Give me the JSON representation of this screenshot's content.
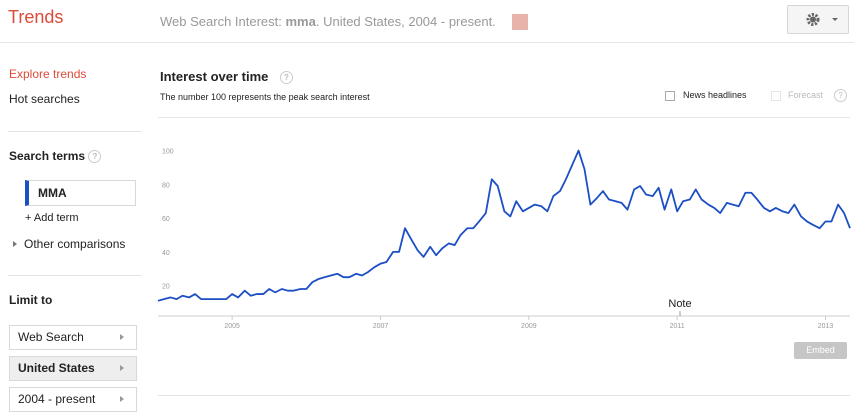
{
  "header": {
    "logo": "Trends",
    "query_prefix": "Web Search Interest:",
    "query_term": "mma",
    "query_suffix": ". United States, 2004 - present."
  },
  "sidebar": {
    "links": [
      "Explore trends",
      "Hot searches"
    ],
    "search_terms_title": "Search terms",
    "terms": [
      "MMA"
    ],
    "add_term": "+ Add term",
    "other_comparisons": "Other comparisons",
    "limit_title": "Limit to",
    "filters": [
      "Web Search",
      "United States",
      "2004 - present"
    ]
  },
  "embed": "Embed",
  "chart_data": {
    "type": "line",
    "title": "Interest over time",
    "subtitle": "The number 100 represents the peak search interest",
    "options": [
      "News headlines",
      "Forecast"
    ],
    "annotation": "Note",
    "color": "#1c4fc4",
    "x": [
      2004,
      2004.08,
      2004.17,
      2004.25,
      2004.33,
      2004.42,
      2004.5,
      2004.58,
      2004.67,
      2004.75,
      2004.83,
      2004.92,
      2005,
      2005.08,
      2005.17,
      2005.25,
      2005.33,
      2005.42,
      2005.5,
      2005.58,
      2005.67,
      2005.75,
      2005.83,
      2005.92,
      2006,
      2006.08,
      2006.17,
      2006.25,
      2006.33,
      2006.42,
      2006.5,
      2006.58,
      2006.67,
      2006.75,
      2006.83,
      2006.92,
      2007,
      2007.08,
      2007.17,
      2007.25,
      2007.33,
      2007.42,
      2007.5,
      2007.58,
      2007.67,
      2007.75,
      2007.83,
      2007.92,
      2008,
      2008.08,
      2008.17,
      2008.25,
      2008.33,
      2008.42,
      2008.5,
      2008.58,
      2008.67,
      2008.75,
      2008.83,
      2008.92,
      2009,
      2009.08,
      2009.17,
      2009.25,
      2009.33,
      2009.42,
      2009.5,
      2009.58,
      2009.67,
      2009.75,
      2009.83,
      2009.92,
      2010,
      2010.08,
      2010.17,
      2010.25,
      2010.33,
      2010.42,
      2010.5,
      2010.58,
      2010.67,
      2010.75,
      2010.83,
      2010.92,
      2011,
      2011.08,
      2011.17,
      2011.25,
      2011.33,
      2011.42,
      2011.5,
      2011.58,
      2011.67,
      2011.75,
      2011.83,
      2011.92,
      2012,
      2012.08,
      2012.17,
      2012.25,
      2012.33,
      2012.42,
      2012.5,
      2012.58,
      2012.67,
      2012.75,
      2012.83,
      2012.92,
      2013,
      2013.08,
      2013.17,
      2013.25,
      2013.33
    ],
    "values": [
      11,
      12,
      13,
      12,
      14,
      13,
      15,
      12,
      12,
      12,
      12,
      12,
      15,
      13,
      17,
      14,
      15,
      15,
      18,
      16,
      18,
      17,
      17,
      18,
      18,
      22,
      24,
      25,
      26,
      27,
      25,
      25,
      27,
      26,
      28,
      31,
      33,
      34,
      40,
      40,
      54,
      47,
      41,
      37,
      43,
      38,
      42,
      45,
      44,
      50,
      54,
      54,
      58,
      63,
      83,
      79,
      64,
      61,
      70,
      64,
      66,
      68,
      67,
      64,
      73,
      76,
      83,
      91,
      100,
      89,
      68,
      72,
      76,
      71,
      70,
      69,
      65,
      77,
      79,
      74,
      73,
      78,
      65,
      77,
      64,
      70,
      71,
      77,
      71,
      68,
      66,
      63,
      69,
      68,
      67,
      75,
      75,
      71,
      66,
      64,
      66,
      64,
      63,
      68,
      61,
      58,
      56,
      54,
      58,
      58,
      68,
      63,
      54
    ],
    "xlim": [
      2004,
      2013.33
    ],
    "xticks": [
      2005,
      2007,
      2009,
      2011,
      2013
    ],
    "ylim": [
      2,
      111
    ],
    "yticks": [
      20,
      40,
      60,
      80,
      100
    ]
  }
}
